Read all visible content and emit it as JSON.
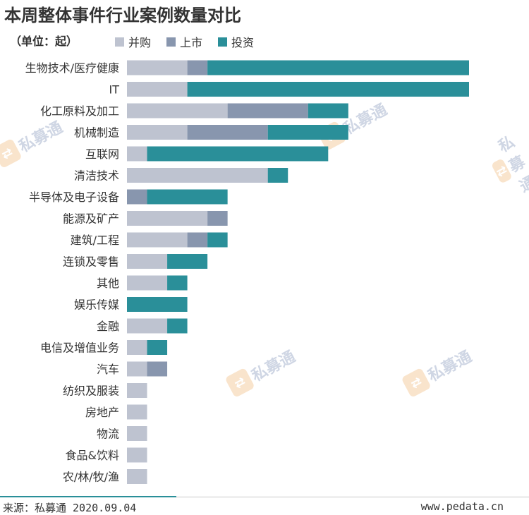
{
  "title": "本周整体事件行业案例数量对比",
  "unit_label": "（单位：起）",
  "source": "来源：私募通 2020.09.04",
  "website": "www.pedata.cn",
  "watermark": {
    "text": "私募通",
    "icon": "pedata-logo-icon"
  },
  "chart_data": {
    "type": "bar",
    "orientation": "horizontal",
    "stacked": true,
    "categories": [
      "生物技术/医疗健康",
      "IT",
      "化工原料及加工",
      "机械制造",
      "互联网",
      "清洁技术",
      "半导体及电子设备",
      "能源及矿产",
      "建筑/工程",
      "连锁及零售",
      "其他",
      "娱乐传媒",
      "金融",
      "电信及增值业务",
      "汽车",
      "纺织及服装",
      "房地产",
      "物流",
      "食品&饮料",
      "农/林/牧/渔"
    ],
    "series": [
      {
        "name": "并购",
        "color": "#bec3d0",
        "values": [
          3,
          3,
          5,
          3,
          1,
          7,
          0,
          4,
          3,
          2,
          2,
          0,
          2,
          1,
          1,
          1,
          1,
          1,
          1,
          1
        ]
      },
      {
        "name": "上市",
        "color": "#8896ae",
        "values": [
          1,
          0,
          4,
          4,
          0,
          0,
          1,
          1,
          1,
          0,
          0,
          0,
          0,
          0,
          1,
          0,
          0,
          0,
          0,
          0
        ]
      },
      {
        "name": "投资",
        "color": "#2a8f99",
        "values": [
          13,
          14,
          2,
          4,
          9,
          1,
          4,
          0,
          1,
          2,
          1,
          3,
          1,
          1,
          0,
          0,
          0,
          0,
          0,
          0
        ]
      }
    ],
    "xlim": [
      0,
      17
    ],
    "grid": false,
    "legend_position": "top-left"
  }
}
